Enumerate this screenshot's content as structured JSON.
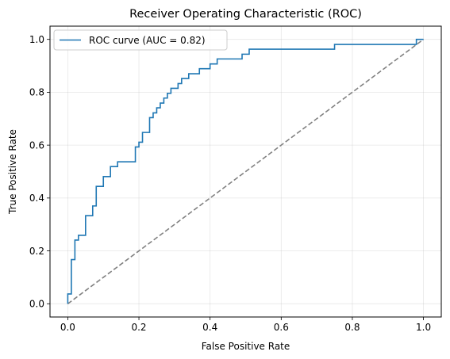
{
  "chart_data": {
    "type": "line",
    "title": "Receiver Operating Characteristic (ROC)",
    "xlabel": "False Positive Rate",
    "ylabel": "True Positive Rate",
    "xlim": [
      -0.05,
      1.05
    ],
    "ylim": [
      -0.05,
      1.05
    ],
    "xticks": [
      0.0,
      0.2,
      0.4,
      0.6,
      0.8,
      1.0
    ],
    "yticks": [
      0.0,
      0.2,
      0.4,
      0.6,
      0.8,
      1.0
    ],
    "xtick_labels": [
      "0.0",
      "0.2",
      "0.4",
      "0.6",
      "0.8",
      "1.0"
    ],
    "ytick_labels": [
      "0.0",
      "0.2",
      "0.4",
      "0.6",
      "0.8",
      "1.0"
    ],
    "grid": true,
    "legend": {
      "position": "top-left",
      "entries": [
        "ROC curve (AUC = 0.82)"
      ]
    },
    "series": [
      {
        "name": "ROC curve (AUC = 0.82)",
        "color": "#1f77b4",
        "style": "step",
        "points": [
          [
            0.0,
            0.0
          ],
          [
            0.0,
            0.037
          ],
          [
            0.01,
            0.037
          ],
          [
            0.01,
            0.167
          ],
          [
            0.02,
            0.167
          ],
          [
            0.02,
            0.241
          ],
          [
            0.03,
            0.241
          ],
          [
            0.03,
            0.259
          ],
          [
            0.05,
            0.259
          ],
          [
            0.05,
            0.333
          ],
          [
            0.07,
            0.333
          ],
          [
            0.07,
            0.37
          ],
          [
            0.08,
            0.37
          ],
          [
            0.08,
            0.444
          ],
          [
            0.1,
            0.444
          ],
          [
            0.1,
            0.481
          ],
          [
            0.12,
            0.481
          ],
          [
            0.12,
            0.519
          ],
          [
            0.14,
            0.519
          ],
          [
            0.14,
            0.537
          ],
          [
            0.19,
            0.537
          ],
          [
            0.19,
            0.593
          ],
          [
            0.2,
            0.593
          ],
          [
            0.2,
            0.611
          ],
          [
            0.21,
            0.611
          ],
          [
            0.21,
            0.648
          ],
          [
            0.23,
            0.648
          ],
          [
            0.23,
            0.704
          ],
          [
            0.24,
            0.704
          ],
          [
            0.24,
            0.722
          ],
          [
            0.25,
            0.722
          ],
          [
            0.25,
            0.741
          ],
          [
            0.26,
            0.741
          ],
          [
            0.26,
            0.759
          ],
          [
            0.27,
            0.759
          ],
          [
            0.27,
            0.778
          ],
          [
            0.28,
            0.778
          ],
          [
            0.28,
            0.796
          ],
          [
            0.29,
            0.796
          ],
          [
            0.29,
            0.815
          ],
          [
            0.31,
            0.815
          ],
          [
            0.31,
            0.833
          ],
          [
            0.32,
            0.833
          ],
          [
            0.32,
            0.852
          ],
          [
            0.34,
            0.852
          ],
          [
            0.34,
            0.87
          ],
          [
            0.37,
            0.87
          ],
          [
            0.37,
            0.889
          ],
          [
            0.4,
            0.889
          ],
          [
            0.4,
            0.907
          ],
          [
            0.42,
            0.907
          ],
          [
            0.42,
            0.926
          ],
          [
            0.49,
            0.926
          ],
          [
            0.49,
            0.944
          ],
          [
            0.51,
            0.944
          ],
          [
            0.51,
            0.963
          ],
          [
            0.75,
            0.963
          ],
          [
            0.75,
            0.981
          ],
          [
            0.98,
            0.981
          ],
          [
            0.98,
            1.0
          ],
          [
            1.0,
            1.0
          ]
        ]
      },
      {
        "name": "",
        "color": "#808080",
        "style": "dashed",
        "points": [
          [
            0.0,
            0.0
          ],
          [
            1.0,
            1.0
          ]
        ]
      }
    ]
  }
}
